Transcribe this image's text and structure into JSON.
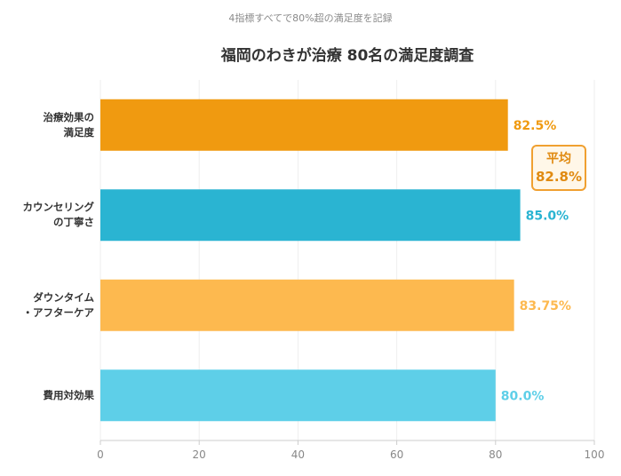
{
  "subtitle": "4指標すべてで80%超の満足度を記録",
  "chart_data": {
    "type": "bar",
    "orientation": "horizontal",
    "title": "福岡のわきが治療 80名の満足度調査",
    "categories": [
      [
        "治療効果の",
        "満足度"
      ],
      [
        "カウンセリング",
        "の丁寧さ"
      ],
      [
        "ダウンタイム",
        "・アフターケア"
      ],
      [
        "費用対効果"
      ]
    ],
    "values": [
      82.5,
      85.0,
      83.75,
      80.0
    ],
    "value_labels": [
      "82.5%",
      "85.0%",
      "83.75%",
      "80.0%"
    ],
    "colors": [
      "#f09a10",
      "#2ab4d2",
      "#fdb94f",
      "#5ecfe8"
    ],
    "label_colors": [
      "#f09a10",
      "#2ab4d2",
      "#fdb94f",
      "#5ecfe8"
    ],
    "xlim": [
      0,
      100
    ],
    "xticks": [
      0,
      20,
      40,
      60,
      80,
      100
    ],
    "grid": true
  },
  "annotation": {
    "title": "平均",
    "value": "82.8%"
  }
}
